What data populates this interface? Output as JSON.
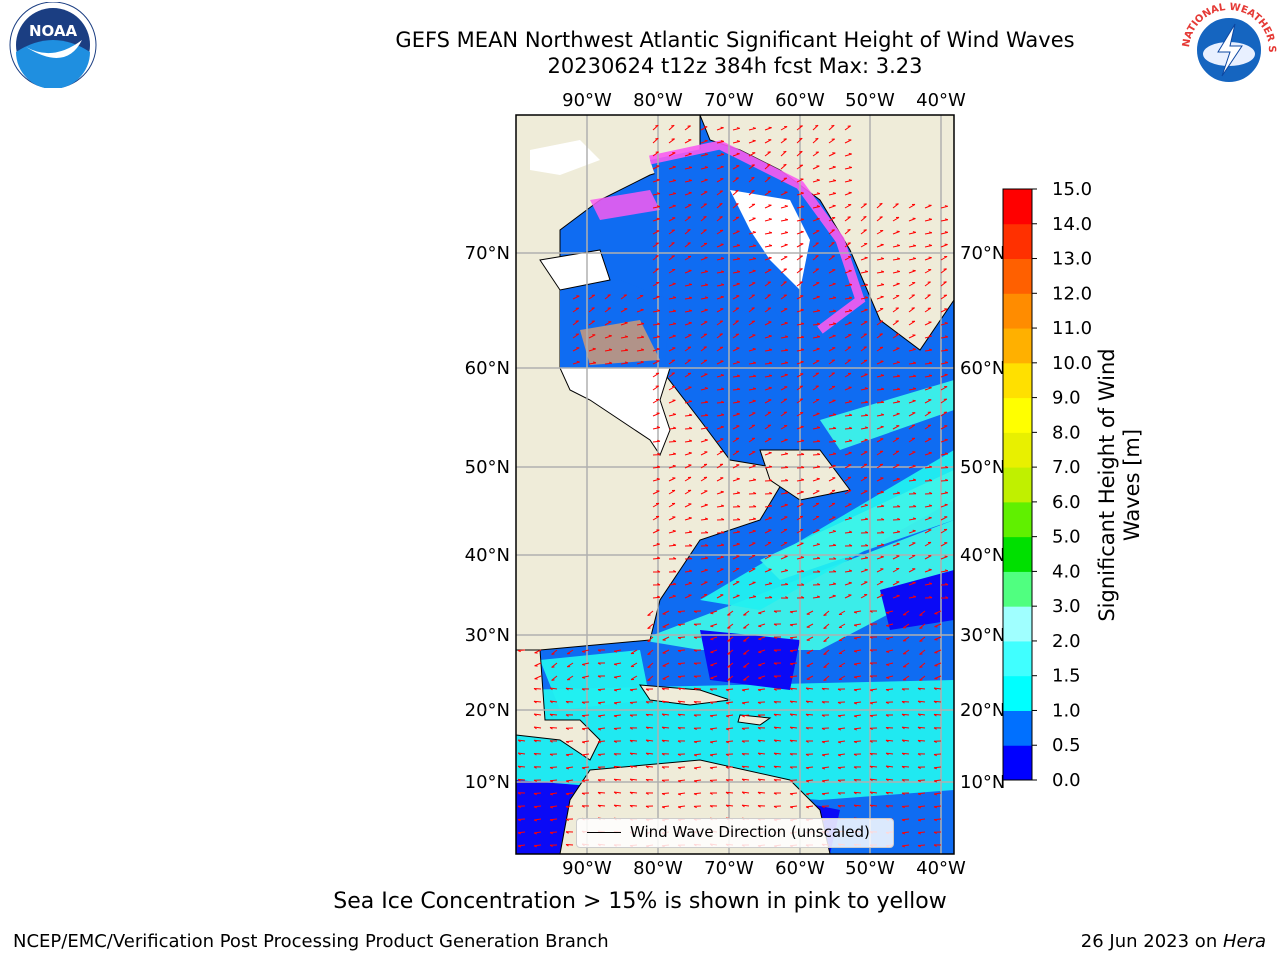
{
  "title": {
    "line1": "GEFS MEAN Northwest Atlantic Significant Height of Wind Waves",
    "line2": "20230624 t12z 384h fcst   Max: 3.23"
  },
  "logos": {
    "left": "NOAA",
    "right": "NATIONAL WEATHER SERVICE",
    "left_icon": "noaa-logo",
    "right_icon": "nws-logo"
  },
  "map": {
    "lon_labels": [
      "90°W",
      "80°W",
      "70°W",
      "60°W",
      "50°W",
      "40°W"
    ],
    "lat_labels_left": [
      "70°N",
      "60°N",
      "50°N",
      "40°N",
      "30°N",
      "20°N",
      "10°N"
    ],
    "lat_labels_right": [
      "70°N",
      "60°N",
      "50°N",
      "40°N",
      "30°N",
      "20°N",
      "10°N"
    ],
    "legend_label": "Wind Wave Direction (unscaled)",
    "colors": {
      "land": "#efecd9",
      "ocean_deep": "#0f6cf2",
      "wave_low": "#0a0af6",
      "wave_mid": "#22f0f0",
      "wave_mid_light": "#3ef4e8",
      "ice_pink": "#f85cf0",
      "ice_orange": "#f6a45c",
      "arrow": "#ff0000"
    }
  },
  "colorbar": {
    "title": "Significant Height of Wind Waves [m]",
    "tick_labels": [
      "0.0",
      "0.5",
      "1.0",
      "1.5",
      "2.0",
      "3.0",
      "4.0",
      "5.0",
      "6.0",
      "7.0",
      "8.0",
      "9.0",
      "10.0",
      "11.0",
      "12.0",
      "13.0",
      "14.0",
      "15.0"
    ],
    "colors": [
      "#0000ff",
      "#0070ff",
      "#00ffff",
      "#40ffff",
      "#a0ffff",
      "#50ff80",
      "#00e000",
      "#60f000",
      "#c0f000",
      "#e8f000",
      "#ffff00",
      "#ffe000",
      "#ffb000",
      "#ff8c00",
      "#ff6000",
      "#ff3000",
      "#ff0000"
    ]
  },
  "note": "Sea Ice Concentration > 15% is shown in pink to yellow",
  "footer": {
    "left": "NCEP/EMC/Verification Post Processing Product Generation Branch",
    "right_date": "26 Jun 2023 on ",
    "right_host": "Hera"
  }
}
